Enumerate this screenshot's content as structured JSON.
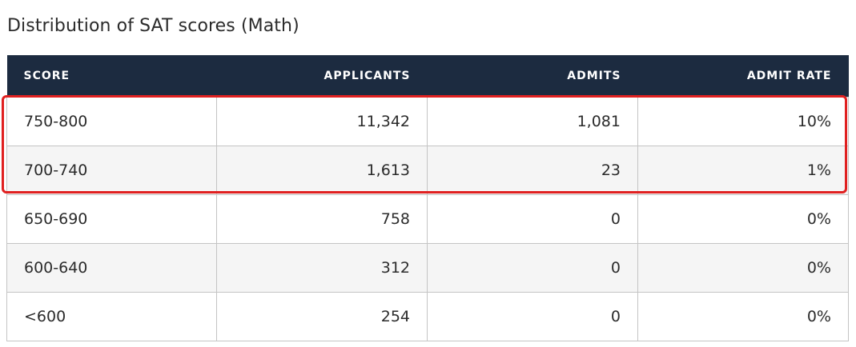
{
  "title": "Distribution of SAT scores (Math)",
  "table": {
    "headers": [
      "SCORE",
      "APPLICANTS",
      "ADMITS",
      "ADMIT RATE"
    ],
    "rows": [
      {
        "score": "750-800",
        "applicants": "11,342",
        "admits": "1,081",
        "admit_rate": "10%"
      },
      {
        "score": "700-740",
        "applicants": "1,613",
        "admits": "23",
        "admit_rate": "1%"
      },
      {
        "score": "650-690",
        "applicants": "758",
        "admits": "0",
        "admit_rate": "0%"
      },
      {
        "score": "600-640",
        "applicants": "312",
        "admits": "0",
        "admit_rate": "0%"
      },
      {
        "score": "<600",
        "applicants": "254",
        "admits": "0",
        "admit_rate": "0%"
      }
    ]
  },
  "colors": {
    "header_bg": "#1c2b40",
    "highlight": "#e02020",
    "row_alt": "#f5f5f5"
  }
}
